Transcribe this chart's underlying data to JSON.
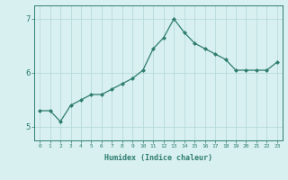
{
  "x": [
    0,
    1,
    2,
    3,
    4,
    5,
    6,
    7,
    8,
    9,
    10,
    11,
    12,
    13,
    14,
    15,
    16,
    17,
    18,
    19,
    20,
    21,
    22,
    23
  ],
  "y": [
    5.3,
    5.3,
    5.1,
    5.4,
    5.5,
    5.6,
    5.6,
    5.7,
    5.8,
    5.9,
    6.05,
    6.45,
    6.65,
    7.0,
    6.75,
    6.55,
    6.45,
    6.35,
    6.25,
    6.05,
    6.05,
    6.05,
    6.05,
    6.2
  ],
  "line_color": "#2e7d6e",
  "marker": "D",
  "marker_size": 2,
  "bg_color": "#d8f0f0",
  "grid_color": "#b8dada",
  "axis_color": "#2e7d6e",
  "xlabel": "Humidex (Indice chaleur)",
  "xlim": [
    -0.5,
    23.5
  ],
  "ylim": [
    4.75,
    7.25
  ],
  "yticks": [
    5,
    6,
    7
  ],
  "xtick_labels": [
    "0",
    "1",
    "2",
    "3",
    "4",
    "5",
    "6",
    "7",
    "8",
    "9",
    "10",
    "11",
    "12",
    "13",
    "14",
    "15",
    "16",
    "17",
    "18",
    "19",
    "20",
    "21",
    "22",
    "23"
  ]
}
